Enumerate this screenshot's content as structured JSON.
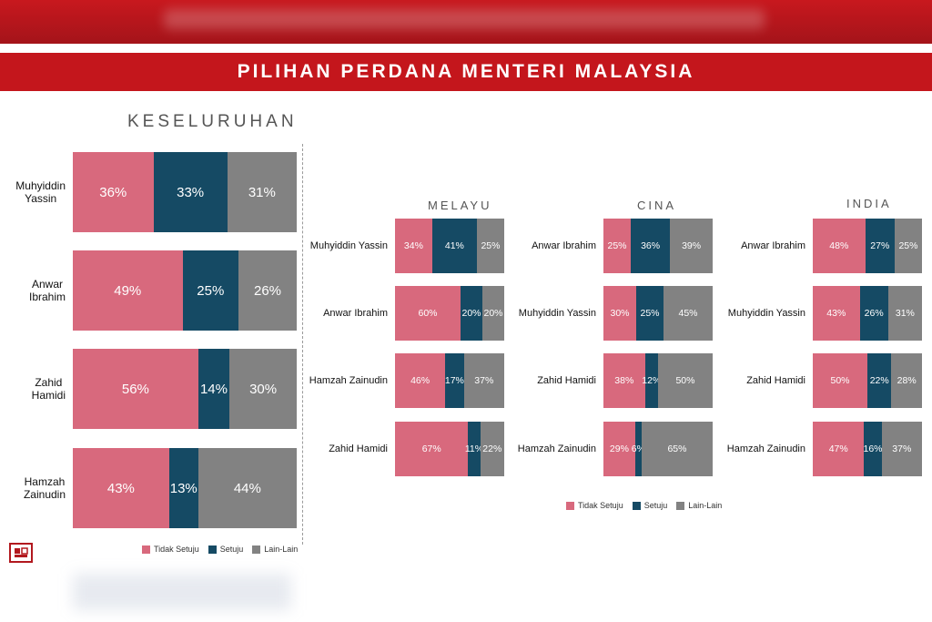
{
  "header": {
    "title": "PILIHAN PERDANA MENTERI MALAYSIA"
  },
  "colors": {
    "tidak_setuju": "#d8697d",
    "setuju": "#154a64",
    "lain_lain": "#828282",
    "banner": "#c4161c"
  },
  "legend": [
    "Tidak Setuju",
    "Setuju",
    "Lain-Lain"
  ],
  "chart_data": [
    {
      "type": "bar",
      "stacked": true,
      "orientation": "horizontal",
      "title": "KESELURUHAN",
      "categories": [
        "Muhyiddin Yassin",
        "Anwar Ibrahim",
        "Zahid Hamidi",
        "Hamzah Zainudin"
      ],
      "series": [
        {
          "name": "Tidak Setuju",
          "values": [
            36,
            49,
            56,
            43
          ]
        },
        {
          "name": "Setuju",
          "values": [
            33,
            25,
            14,
            13
          ]
        },
        {
          "name": "Lain-Lain",
          "values": [
            31,
            26,
            30,
            44
          ]
        }
      ],
      "unit": "%"
    },
    {
      "type": "bar",
      "stacked": true,
      "orientation": "horizontal",
      "title": "MELAYU",
      "categories": [
        "Muhyiddin Yassin",
        "Anwar Ibrahim",
        "Hamzah Zainudin",
        "Zahid Hamidi"
      ],
      "series": [
        {
          "name": "Tidak Setuju",
          "values": [
            34,
            60,
            46,
            67
          ]
        },
        {
          "name": "Setuju",
          "values": [
            41,
            20,
            17,
            11
          ]
        },
        {
          "name": "Lain-Lain",
          "values": [
            25,
            20,
            37,
            22
          ]
        }
      ],
      "unit": "%"
    },
    {
      "type": "bar",
      "stacked": true,
      "orientation": "horizontal",
      "title": "CINA",
      "categories": [
        "Anwar Ibrahim",
        "Muhyiddin Yassin",
        "Zahid Hamidi",
        "Hamzah Zainudin"
      ],
      "series": [
        {
          "name": "Tidak Setuju",
          "values": [
            25,
            30,
            38,
            29
          ]
        },
        {
          "name": "Setuju",
          "values": [
            36,
            25,
            12,
            6
          ]
        },
        {
          "name": "Lain-Lain",
          "values": [
            39,
            45,
            50,
            65
          ]
        }
      ],
      "unit": "%"
    },
    {
      "type": "bar",
      "stacked": true,
      "orientation": "horizontal",
      "title": "INDIA",
      "categories": [
        "Anwar Ibrahim",
        "Muhyiddin Yassin",
        "Zahid Hamidi",
        "Hamzah Zainudin"
      ],
      "series": [
        {
          "name": "Tidak Setuju",
          "values": [
            48,
            43,
            50,
            47
          ]
        },
        {
          "name": "Setuju",
          "values": [
            27,
            26,
            22,
            16
          ]
        },
        {
          "name": "Lain-Lain",
          "values": [
            25,
            31,
            28,
            37
          ]
        }
      ],
      "unit": "%"
    }
  ]
}
